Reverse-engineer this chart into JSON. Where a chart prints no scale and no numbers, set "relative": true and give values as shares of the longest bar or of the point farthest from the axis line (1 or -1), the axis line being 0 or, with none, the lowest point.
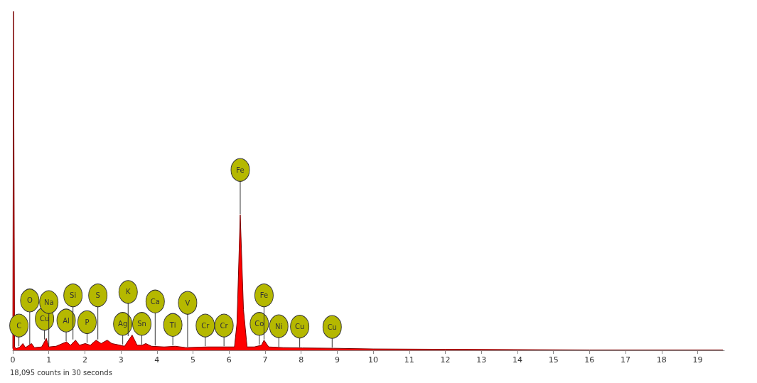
{
  "chart_data": {
    "type": "area",
    "relative": true,
    "x": [
      0,
      0.02,
      0.05,
      0.1,
      0.2,
      0.28,
      0.35,
      0.52,
      0.6,
      0.8,
      0.93,
      1.0,
      1.2,
      1.49,
      1.6,
      1.74,
      1.85,
      2.01,
      2.15,
      2.31,
      2.45,
      2.62,
      2.75,
      2.98,
      3.1,
      3.31,
      3.45,
      3.59,
      3.69,
      3.85,
      4.2,
      4.51,
      4.8,
      5.41,
      5.95,
      6.15,
      6.22,
      6.31,
      6.4,
      6.5,
      6.7,
      6.9,
      6.97,
      7.1,
      7.5,
      8.04,
      8.9,
      10,
      12,
      14,
      16,
      19.7
    ],
    "series": [
      {
        "color": "#ff0000",
        "values": [
          0.005,
          1.0,
          0.01,
          0.005,
          0.01,
          0.02,
          0.008,
          0.02,
          0.008,
          0.01,
          0.035,
          0.01,
          0.012,
          0.025,
          0.015,
          0.03,
          0.015,
          0.02,
          0.015,
          0.03,
          0.02,
          0.03,
          0.02,
          0.015,
          0.012,
          0.045,
          0.015,
          0.015,
          0.02,
          0.012,
          0.01,
          0.012,
          0.008,
          0.01,
          0.01,
          0.01,
          0.08,
          0.4,
          0.12,
          0.01,
          0.01,
          0.015,
          0.03,
          0.01,
          0.008,
          0.007,
          0.006,
          0.004,
          0.003,
          0.002,
          0.001,
          0.001
        ]
      }
    ],
    "xlim": [
      0,
      19.74
    ],
    "xticks": [
      0,
      1,
      2,
      3,
      4,
      5,
      6,
      7,
      8,
      9,
      10,
      11,
      12,
      13,
      14,
      15,
      16,
      17,
      18,
      19
    ],
    "grid": false,
    "annotations": [
      {
        "text": "C",
        "x": 0.17,
        "y": 0.01
      },
      {
        "text": "O",
        "x": 0.47,
        "y": 0.015
      },
      {
        "text": "Cu",
        "x": 0.88,
        "y": 0.03
      },
      {
        "text": "Na",
        "x": 1.0,
        "y": 0.01
      },
      {
        "text": "Al",
        "x": 1.48,
        "y": 0.025
      },
      {
        "text": "Si",
        "x": 1.67,
        "y": 0.03
      },
      {
        "text": "P",
        "x": 2.06,
        "y": 0.02
      },
      {
        "text": "S",
        "x": 2.36,
        "y": 0.03
      },
      {
        "text": "Ag",
        "x": 3.05,
        "y": 0.015
      },
      {
        "text": "K",
        "x": 3.2,
        "y": 0.04
      },
      {
        "text": "Sn",
        "x": 3.58,
        "y": 0.015
      },
      {
        "text": "Ca",
        "x": 3.95,
        "y": 0.012
      },
      {
        "text": "Ti",
        "x": 4.44,
        "y": 0.012
      },
      {
        "text": "V",
        "x": 4.85,
        "y": 0.008
      },
      {
        "text": "Cr",
        "x": 5.34,
        "y": 0.01
      },
      {
        "text": "Cr",
        "x": 5.86,
        "y": 0.01
      },
      {
        "text": "Fe",
        "x": 6.31,
        "y": 0.4
      },
      {
        "text": "Co",
        "x": 6.84,
        "y": 0.015
      },
      {
        "text": "Fe",
        "x": 6.97,
        "y": 0.03
      },
      {
        "text": "Ni",
        "x": 7.38,
        "y": 0.008
      },
      {
        "text": "Cu",
        "x": 7.96,
        "y": 0.007
      },
      {
        "text": "Cu",
        "x": 8.86,
        "y": 0.006
      },
      "18,095 counts in 30 seconds"
    ]
  }
}
